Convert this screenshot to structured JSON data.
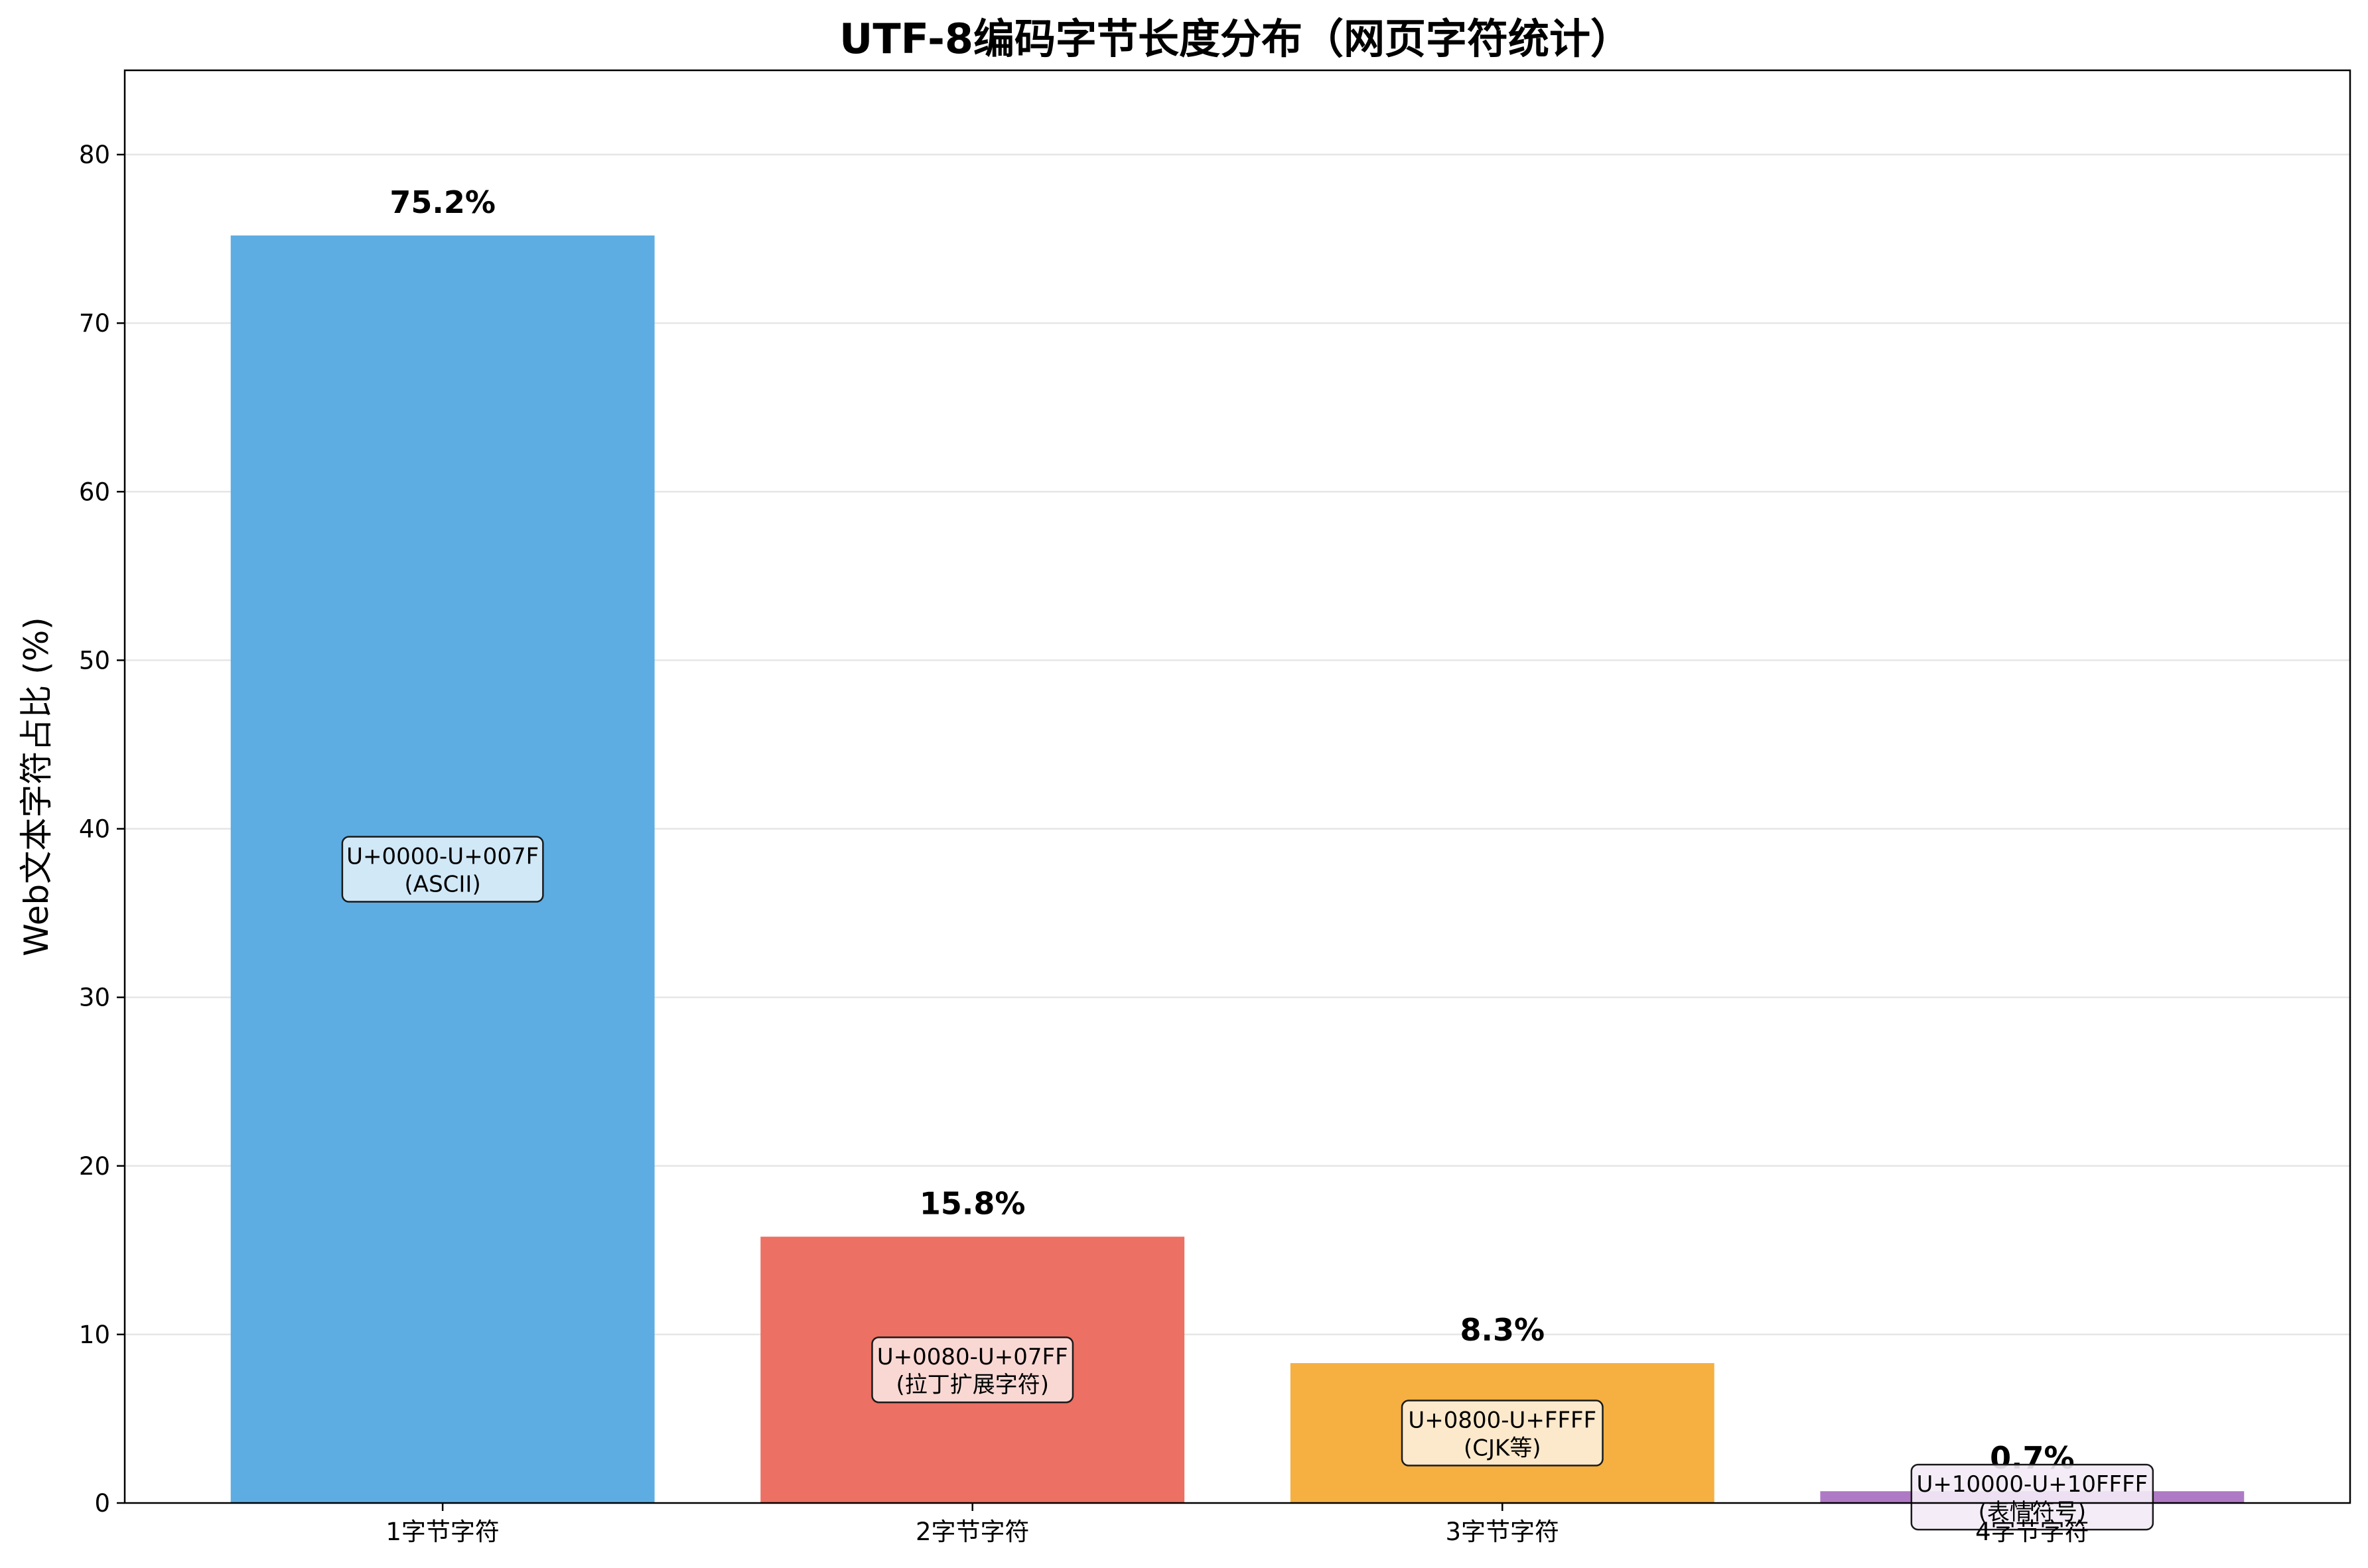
{
  "chart_data": {
    "type": "bar",
    "title": "UTF-8编码字节长度分布（网页字符统计）",
    "xlabel": "",
    "ylabel": "Web文本字符占比 (%)",
    "ylim": [
      0,
      85
    ],
    "yticks": [
      0,
      10,
      20,
      30,
      40,
      50,
      60,
      70,
      80
    ],
    "grid": "horizontal",
    "categories": [
      "1字节字符",
      "2字节字符",
      "3字节字符",
      "4字节字符"
    ],
    "values": [
      75.2,
      15.8,
      8.3,
      0.7
    ],
    "value_labels": [
      "75.2%",
      "15.8%",
      "8.3%",
      "0.7%"
    ],
    "colors": [
      "#5dade2",
      "#ec7063",
      "#f5b041",
      "#af7ac5"
    ],
    "annotations": [
      {
        "line1": "U+0000-U+007F",
        "line2": "(ASCII)",
        "fill": "#deeef9"
      },
      {
        "line1": "U+0080-U+07FF",
        "line2": "(拉丁扩展字符)",
        "fill": "#fbe3e0"
      },
      {
        "line1": "U+0800-U+FFFF",
        "line2": "(CJK等)",
        "fill": "#fdf0dc"
      },
      {
        "line1": "U+10000-U+10FFFF",
        "line2": "(表情符号)",
        "fill": "#f3ebf6"
      }
    ]
  }
}
